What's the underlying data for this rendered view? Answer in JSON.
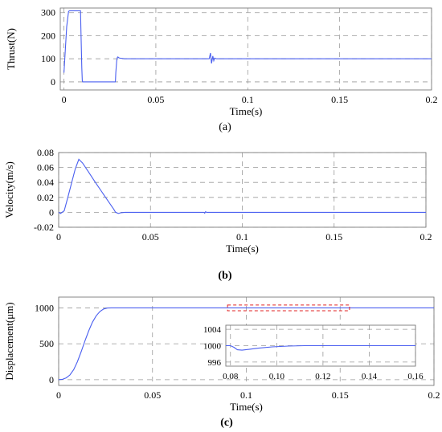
{
  "figure": {
    "panel_a": {
      "caption_open": "(",
      "caption_letter": "a",
      "caption_close": ")"
    },
    "panel_b": {
      "caption_open": "(",
      "caption_letter": "b",
      "caption_close": ")"
    },
    "panel_c": {
      "caption_open": "(",
      "caption_letter": "c",
      "caption_close": ")"
    }
  },
  "colors": {
    "line": "#4a5ff0",
    "grid": "#9a9a9a",
    "frame": "#7a7a7a",
    "highlight": "#e02020"
  },
  "chart_data": [
    {
      "type": "line",
      "xlabel": "Time(s)",
      "ylabel": "Thrust(N)",
      "xlim": [
        -0.002,
        0.2
      ],
      "ylim": [
        -35,
        320
      ],
      "xticks": [
        0,
        0.05,
        0.1,
        0.15,
        0.2
      ],
      "xtick_labels": [
        "0",
        "0.05",
        "0.1",
        "0.15",
        "0.2"
      ],
      "yticks": [
        0,
        100,
        200,
        300
      ],
      "ytick_labels": [
        "0",
        "100",
        "200",
        "300"
      ],
      "grid": true,
      "series": [
        {
          "x": [
            0,
            0.0015,
            0.0025,
            0.003,
            0.009,
            0.0092,
            0.0097,
            0.01,
            0.0102,
            0.028,
            0.0282,
            0.0287,
            0.029,
            0.0293,
            0.03,
            0.031,
            0.033,
            0.035,
            0.05,
            0.079,
            0.0797,
            0.0803,
            0.081,
            0.0815,
            0.082,
            0.083,
            0.09,
            0.12,
            0.15,
            0.2
          ],
          "y": [
            40,
            240,
            305,
            308,
            308,
            240,
            60,
            5,
            0,
            0,
            40,
            90,
            105,
            108,
            104,
            102,
            100,
            100,
            100,
            100,
            125,
            80,
            112,
            92,
            103,
            100,
            100,
            100,
            100,
            100
          ]
        }
      ]
    },
    {
      "type": "line",
      "xlabel": "Time(s)",
      "ylabel": "Velocity(m/s)",
      "xlim": [
        0,
        0.2
      ],
      "ylim": [
        -0.02,
        0.08
      ],
      "xticks": [
        0,
        0.05,
        0.1,
        0.15,
        0.2
      ],
      "xtick_labels": [
        "0",
        "0.05",
        "0.1",
        "0.15",
        "0.2"
      ],
      "yticks": [
        -0.02,
        0,
        0.02,
        0.04,
        0.06,
        0.08
      ],
      "ytick_labels": [
        "-0.02",
        "0",
        "0.02",
        "0.04",
        "0.06",
        "0.08"
      ],
      "grid": true,
      "series": [
        {
          "x": [
            0,
            0.001,
            0.003,
            0.005,
            0.009,
            0.011,
            0.013,
            0.016,
            0.02,
            0.025,
            0.03,
            0.031,
            0.0325,
            0.034,
            0.036,
            0.05,
            0.079,
            0.0795,
            0.08,
            0.0805,
            0.1,
            0.2
          ],
          "y": [
            0,
            -0.0015,
            0.002,
            0.02,
            0.058,
            0.071,
            0.066,
            0.055,
            0.04,
            0.022,
            0.004,
            0.0,
            -0.0015,
            -0.0005,
            0.0,
            0.0,
            0.0,
            -0.0012,
            0.0008,
            0.0,
            0.0,
            0.0
          ]
        }
      ]
    },
    {
      "type": "line",
      "xlabel": "Time(s)",
      "ylabel": "Displacement(μm)",
      "xlim": [
        0,
        0.2
      ],
      "ylim": [
        -80,
        1150
      ],
      "xticks": [
        0,
        0.05,
        0.1,
        0.15,
        0.2
      ],
      "xtick_labels": [
        "0",
        "0.05",
        "0.1",
        "0.15",
        "0.2"
      ],
      "yticks": [
        0,
        500,
        1000
      ],
      "ytick_labels": [
        "0",
        "500",
        "1000"
      ],
      "grid": true,
      "series": [
        {
          "x": [
            0,
            0.002,
            0.004,
            0.006,
            0.008,
            0.01,
            0.012,
            0.014,
            0.016,
            0.018,
            0.02,
            0.022,
            0.024,
            0.026,
            0.028,
            0.03,
            0.2
          ],
          "y": [
            0,
            5,
            25,
            65,
            140,
            250,
            390,
            540,
            680,
            800,
            890,
            950,
            985,
            998,
            1000,
            1000,
            1000
          ]
        }
      ],
      "inset": {
        "xlim": [
          0.078,
          0.16
        ],
        "ylim": [
          995,
          1005
        ],
        "xticks": [
          0.08,
          0.1,
          0.12,
          0.14,
          0.16
        ],
        "xtick_labels": [
          "0.08",
          "0.10",
          "0.12",
          "0.14",
          "0.16"
        ],
        "yticks": [
          996,
          1000,
          1004
        ],
        "ytick_labels": [
          "996",
          "1000",
          "1004"
        ],
        "series": [
          {
            "x": [
              0.078,
              0.08,
              0.0815,
              0.083,
              0.085,
              0.088,
              0.092,
              0.098,
              0.105,
              0.112,
              0.12,
              0.125,
              0.16
            ],
            "y": [
              1000,
              1000,
              999.6,
              999.0,
              998.9,
              999.1,
              999.4,
              999.7,
              999.9,
              1000,
              1000,
              1000,
              1000
            ]
          }
        ],
        "highlight_x": [
          0.09,
          0.155
        ],
        "highlight_y": [
          960,
          1040
        ]
      }
    }
  ]
}
